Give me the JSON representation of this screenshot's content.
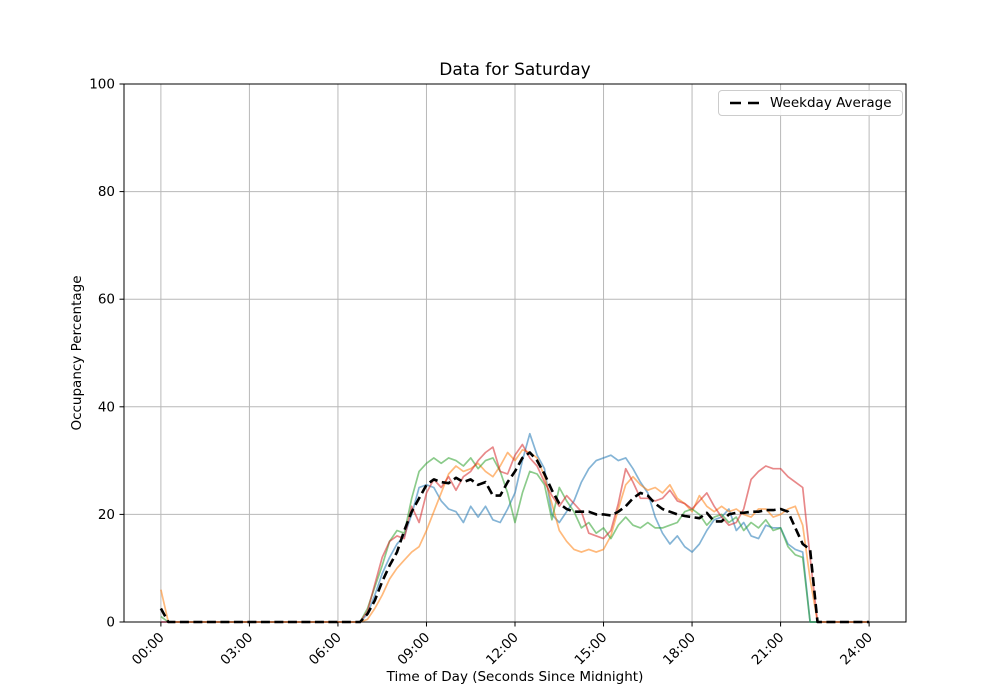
{
  "chart_data": {
    "type": "line",
    "title": "Data for Saturday",
    "xlabel": "Time of Day (Seconds Since Midnight)",
    "ylabel": "Occupancy Percentage",
    "xlim": [
      -1.25,
      25.25
    ],
    "ylim": [
      0,
      100
    ],
    "grid": true,
    "grid_color": "#b8b8b8",
    "x_ticks": {
      "positions": [
        0,
        3,
        6,
        9,
        12,
        15,
        18,
        21,
        24
      ],
      "labels": [
        "00:00",
        "03:00",
        "06:00",
        "09:00",
        "12:00",
        "15:00",
        "18:00",
        "21:00",
        "24:00"
      ]
    },
    "y_ticks": [
      0,
      20,
      40,
      60,
      80,
      100
    ],
    "legend": {
      "position": "upper right",
      "entries": [
        "Weekday Average"
      ]
    },
    "x_hours": [
      0,
      0.25,
      6.75,
      7,
      7.25,
      7.5,
      7.75,
      8,
      8.25,
      8.5,
      8.75,
      9,
      9.25,
      9.5,
      9.75,
      10,
      10.25,
      10.5,
      10.75,
      11,
      11.25,
      11.5,
      11.75,
      12,
      12.25,
      12.5,
      12.75,
      13,
      13.25,
      13.5,
      13.75,
      14,
      14.25,
      14.5,
      14.75,
      15,
      15.25,
      15.5,
      15.75,
      16,
      16.25,
      16.5,
      16.75,
      17,
      17.25,
      17.5,
      17.75,
      18,
      18.25,
      18.5,
      18.75,
      19,
      19.25,
      19.5,
      19.75,
      20,
      20.25,
      20.5,
      20.75,
      21,
      21.25,
      21.5,
      21.75,
      22,
      22.25,
      22.5,
      23,
      23.5,
      24
    ],
    "series": [
      {
        "name": "series_1",
        "color": "#1f77b4",
        "alpha": 0.55,
        "style": "solid",
        "width": 1.7,
        "values": [
          0,
          0,
          0,
          1.5,
          5,
          9,
          12,
          14.5,
          16,
          20,
          25,
          25.5,
          25,
          22.5,
          21,
          20.5,
          18.5,
          21.5,
          19.5,
          21.5,
          19,
          18.5,
          21,
          24,
          30,
          35,
          31,
          28.5,
          20,
          18.5,
          20.5,
          22.5,
          26,
          28.5,
          30,
          30.5,
          31,
          30,
          30.5,
          28.5,
          26,
          24,
          19.5,
          16.5,
          14.5,
          16,
          14,
          13,
          14.5,
          17,
          19,
          19.5,
          21,
          17,
          18.5,
          16,
          15.5,
          18,
          17.5,
          17.5,
          14.5,
          13.5,
          13,
          0,
          0,
          0,
          0,
          0,
          0
        ]
      },
      {
        "name": "series_2",
        "color": "#ff7f0e",
        "alpha": 0.55,
        "style": "solid",
        "width": 1.7,
        "values": [
          6,
          0,
          0,
          0.5,
          2.5,
          5,
          8,
          10,
          11.5,
          13,
          14,
          17,
          20.5,
          24,
          27.5,
          29,
          28,
          28.5,
          29.5,
          28,
          27,
          29,
          31.5,
          30,
          32,
          31.5,
          30.5,
          27,
          22,
          17,
          15,
          13.5,
          13,
          13.5,
          13,
          13.5,
          16,
          21,
          25.5,
          27,
          25.5,
          24.5,
          25,
          24,
          25.5,
          23,
          22,
          20.5,
          23.5,
          21.5,
          20.5,
          21.5,
          20.5,
          21,
          20,
          19.5,
          21,
          21,
          19.5,
          20,
          21,
          21.5,
          18,
          8,
          0,
          0,
          0,
          0,
          0
        ]
      },
      {
        "name": "series_3",
        "color": "#2ca02c",
        "alpha": 0.55,
        "style": "solid",
        "width": 1.7,
        "values": [
          1,
          0,
          0,
          2.5,
          6.5,
          10.5,
          15,
          17,
          16.5,
          23,
          28,
          29.5,
          30.5,
          29.5,
          30.5,
          30,
          29,
          30.5,
          28.5,
          30,
          30.5,
          28,
          24,
          18.5,
          24,
          28,
          27.5,
          25.5,
          19,
          25,
          22.5,
          20.5,
          17.5,
          18.5,
          16.5,
          17.5,
          15.5,
          18,
          19.5,
          18,
          17.5,
          18.5,
          17.5,
          17.5,
          18,
          18.5,
          20.5,
          21,
          20,
          18,
          19.5,
          20,
          18.5,
          19.5,
          17,
          18.5,
          17.5,
          19,
          17,
          17.5,
          14,
          12.5,
          12,
          0,
          0,
          0,
          0,
          0,
          0
        ]
      },
      {
        "name": "series_4",
        "color": "#d62728",
        "alpha": 0.55,
        "style": "solid",
        "width": 1.7,
        "values": [
          0,
          0,
          0,
          2,
          7,
          12,
          15,
          16,
          15.5,
          21.5,
          18.5,
          24,
          26.5,
          25,
          27,
          24.5,
          27,
          28,
          30,
          31.5,
          32.5,
          28,
          27.5,
          31,
          33,
          30.5,
          29,
          26,
          23.5,
          21.5,
          23.5,
          22,
          20.5,
          16.5,
          16,
          15.5,
          17,
          22,
          28.5,
          26,
          23,
          23,
          22.5,
          23,
          24.5,
          22.5,
          22,
          21,
          22.5,
          24,
          21.5,
          19.5,
          18,
          18.5,
          21,
          26.5,
          28,
          29,
          28.5,
          28.5,
          27,
          26,
          25,
          12,
          0,
          0,
          0,
          0,
          0
        ]
      },
      {
        "name": "Weekday Average",
        "color": "#000000",
        "alpha": 1,
        "style": "dashed",
        "width": 2.6,
        "values": [
          2.5,
          0,
          0,
          1.5,
          4,
          7.5,
          10.5,
          13,
          17,
          20.5,
          23,
          25.5,
          26.5,
          26,
          25.8,
          26.8,
          26,
          26.5,
          25.5,
          26,
          23.5,
          23.5,
          26,
          28,
          30.5,
          31.5,
          30,
          27.5,
          24.5,
          22,
          21,
          20.5,
          20.5,
          20.5,
          20,
          20,
          19.8,
          20.5,
          21.5,
          23,
          24,
          23.5,
          22,
          21,
          20.5,
          20,
          19.7,
          19.5,
          19.3,
          20.3,
          18.7,
          18.7,
          20,
          20.3,
          20.3,
          20.5,
          20.5,
          20.8,
          20.8,
          21,
          20.5,
          17.5,
          14.5,
          13.5,
          0,
          0,
          0,
          0,
          0
        ]
      }
    ]
  }
}
